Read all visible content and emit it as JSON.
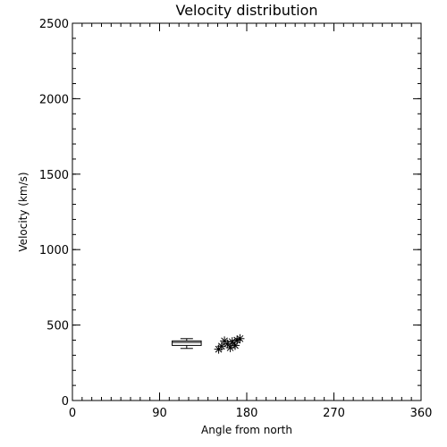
{
  "chart_data": {
    "type": "scatter",
    "title": "Velocity distribution",
    "xlabel": "Angle from north",
    "ylabel": "Velocity (km/s)",
    "xlim": [
      0,
      360
    ],
    "ylim": [
      0,
      2500
    ],
    "xticks": [
      "0",
      "90",
      "180",
      "270",
      "360"
    ],
    "xtick_values": [
      0,
      90,
      180,
      270,
      360
    ],
    "yticks": [
      "0",
      "500",
      "1000",
      "1500",
      "2000",
      "2500"
    ],
    "ytick_values": [
      0,
      500,
      1000,
      1500,
      2000,
      2500
    ],
    "x_minor_step": 10,
    "y_minor_step": 100,
    "grid": false,
    "boxplot": {
      "x_range": [
        103,
        133
      ],
      "whisker_low": 345,
      "q1": 365,
      "median": 385,
      "q3": 395,
      "whisker_high": 410
    },
    "points": [
      {
        "x": 151,
        "y": 340
      },
      {
        "x": 154,
        "y": 360
      },
      {
        "x": 157,
        "y": 395
      },
      {
        "x": 160,
        "y": 375
      },
      {
        "x": 163,
        "y": 350
      },
      {
        "x": 165,
        "y": 390
      },
      {
        "x": 168,
        "y": 365
      },
      {
        "x": 170,
        "y": 400
      },
      {
        "x": 173,
        "y": 410
      }
    ],
    "marker": "asterisk",
    "color": "#000000"
  }
}
